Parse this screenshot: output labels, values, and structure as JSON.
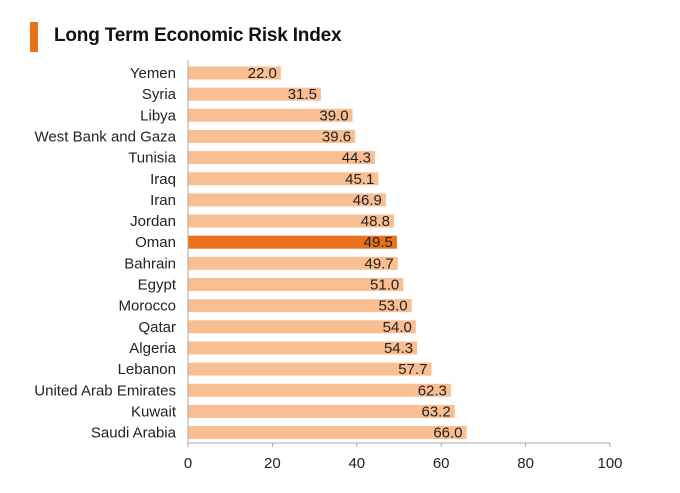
{
  "title": "Long Term Economic Risk Index",
  "colors": {
    "accent": "#E8731B",
    "bar": "#F9BF92",
    "highlight_bar": "#E8731B",
    "axis": "#AAAAAA"
  },
  "chart_data": {
    "type": "bar",
    "orientation": "horizontal",
    "title": "Long Term Economic Risk Index",
    "xlabel": "",
    "ylabel": "",
    "xlim": [
      0,
      100
    ],
    "xticks": [
      0,
      20,
      40,
      60,
      80,
      100
    ],
    "grid": false,
    "highlight": "Oman",
    "categories": [
      "Yemen",
      "Syria",
      "Libya",
      "West Bank and Gaza",
      "Tunisia",
      "Iraq",
      "Iran",
      "Jordan",
      "Oman",
      "Bahrain",
      "Egypt",
      "Morocco",
      "Qatar",
      "Algeria",
      "Lebanon",
      "United Arab Emirates",
      "Kuwait",
      "Saudi Arabia"
    ],
    "values": [
      22.0,
      31.5,
      39.0,
      39.6,
      44.3,
      45.1,
      46.9,
      48.8,
      49.5,
      49.7,
      51.0,
      53.0,
      54.0,
      54.3,
      57.7,
      62.3,
      63.2,
      66.0
    ],
    "value_labels": [
      "22.0",
      "31.5",
      "39.0",
      "39.6",
      "44.3",
      "45.1",
      "46.9",
      "48.8",
      "49.5",
      "49.7",
      "51.0",
      "53.0",
      "54.0",
      "54.3",
      "57.7",
      "62.3",
      "63.2",
      "66.0"
    ]
  }
}
